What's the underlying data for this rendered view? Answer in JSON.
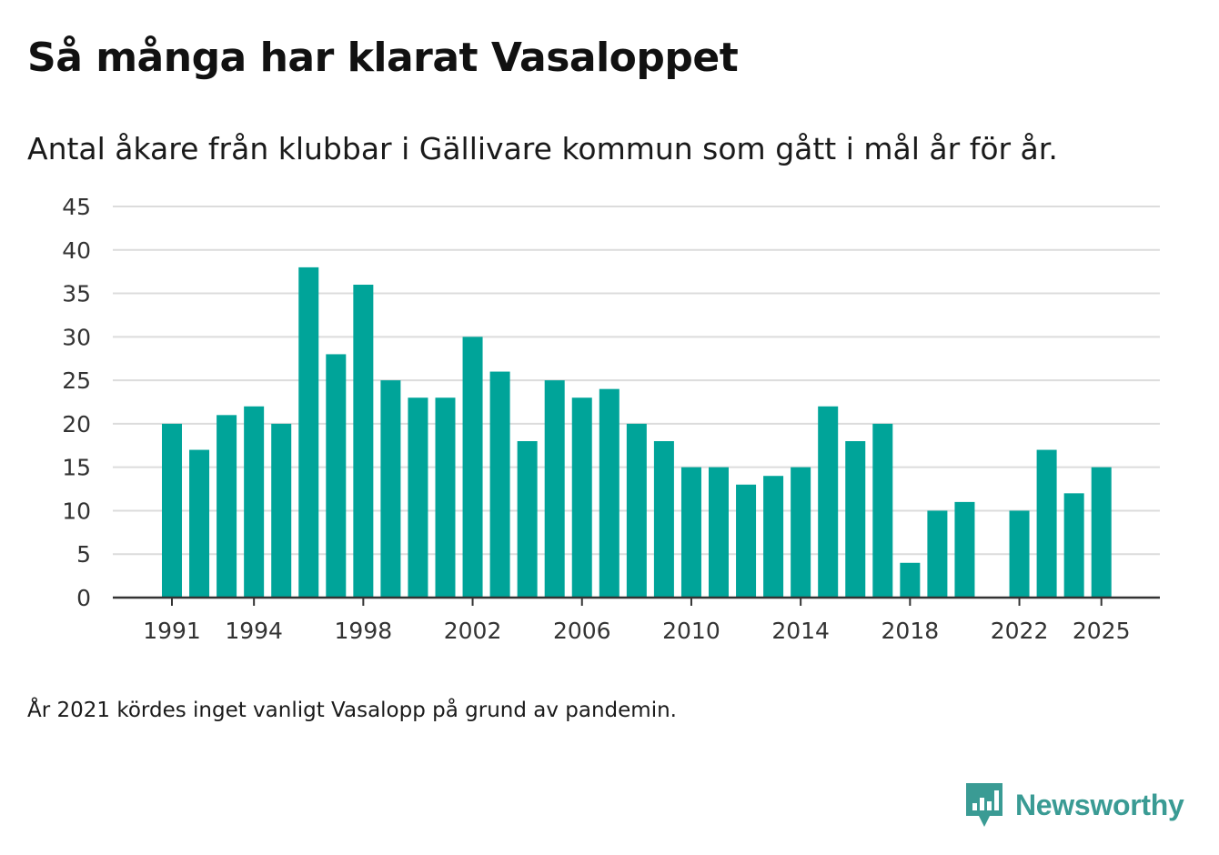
{
  "title": "Så många har klarat Vasaloppet",
  "subtitle": "Antal åkare från klubbar i Gällivare kommun som gått i mål år för år.",
  "footnote": "År 2021 kördes inget vanligt Vasalopp på grund av pandemin.",
  "brand": {
    "name": "Newsworthy",
    "icon": "newsworthy-logo-icon",
    "color": "#3a9b94"
  },
  "colors": {
    "bar": "#00a499",
    "grid": "#dcdcdc",
    "axis": "#333333",
    "text": "#333333"
  },
  "chart_data": {
    "type": "bar",
    "title": "Så många har klarat Vasaloppet",
    "subtitle": "Antal åkare från klubbar i Gällivare kommun som gått i mål år för år.",
    "xlabel": "",
    "ylabel": "",
    "ylim": [
      0,
      45
    ],
    "yticks": [
      0,
      5,
      10,
      15,
      20,
      25,
      30,
      35,
      40,
      45
    ],
    "xticks": [
      1991,
      1994,
      1998,
      2002,
      2006,
      2010,
      2014,
      2018,
      2022,
      2025
    ],
    "grid": true,
    "categories": [
      1991,
      1992,
      1993,
      1994,
      1995,
      1996,
      1997,
      1998,
      1999,
      2000,
      2001,
      2002,
      2003,
      2004,
      2005,
      2006,
      2007,
      2008,
      2009,
      2010,
      2011,
      2012,
      2013,
      2014,
      2015,
      2016,
      2017,
      2018,
      2019,
      2020,
      2021,
      2022,
      2023,
      2024,
      2025
    ],
    "values": [
      20,
      17,
      21,
      22,
      20,
      38,
      28,
      36,
      25,
      23,
      23,
      30,
      26,
      18,
      25,
      23,
      24,
      20,
      18,
      15,
      15,
      13,
      14,
      15,
      22,
      18,
      20,
      4,
      10,
      11,
      null,
      10,
      17,
      12,
      15
    ]
  }
}
